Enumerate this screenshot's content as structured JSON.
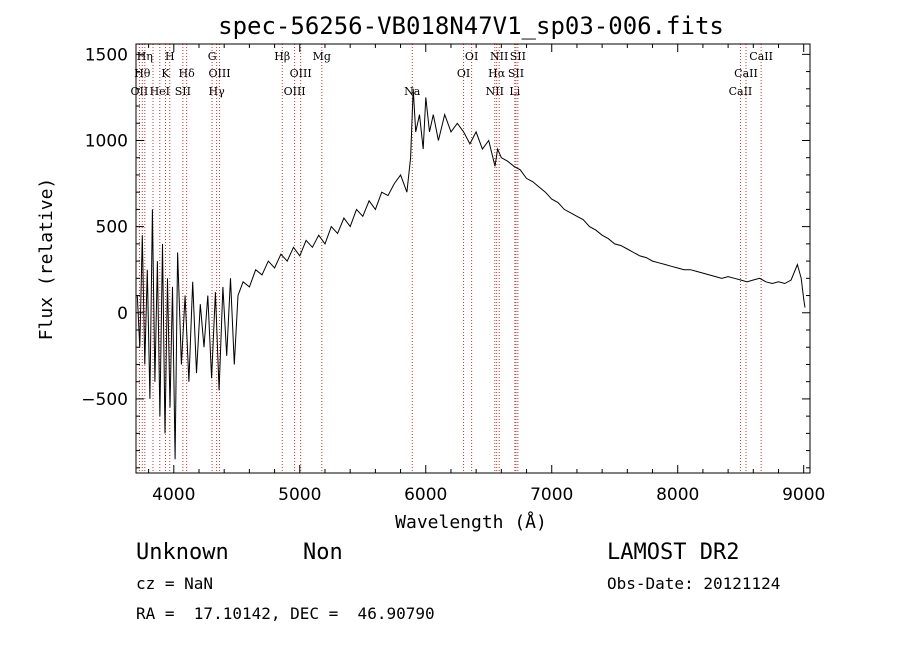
{
  "chart_data": {
    "type": "line",
    "title": "spec-56256-VB018N47V1_sp03-006.fits",
    "xlabel": "Wavelength (Å)",
    "ylabel": "Flux (relative)",
    "xlim": [
      3700,
      9050
    ],
    "ylim": [
      -930,
      1560
    ],
    "xticks": [
      4000,
      5000,
      6000,
      7000,
      8000,
      9000
    ],
    "yticks": [
      -500,
      0,
      500,
      1000,
      1500
    ],
    "grid": false,
    "line_color": "#000000",
    "marker_color": "#cc3333",
    "series": [
      {
        "x": [
          3710,
          3730,
          3750,
          3770,
          3790,
          3810,
          3830,
          3850,
          3870,
          3890,
          3910,
          3930,
          3950,
          3970,
          3990,
          4010,
          4030,
          4060,
          4090,
          4120,
          4150,
          4180,
          4210,
          4240,
          4270,
          4300,
          4330,
          4360,
          4390,
          4420,
          4450,
          4480,
          4510,
          4550,
          4600,
          4650,
          4700,
          4750,
          4800,
          4850,
          4900,
          4950,
          5000,
          5050,
          5100,
          5150,
          5200,
          5250,
          5300,
          5350,
          5400,
          5450,
          5500,
          5550,
          5600,
          5650,
          5700,
          5750,
          5800,
          5850,
          5880,
          5900,
          5920,
          5950,
          5980,
          6000,
          6030,
          6060,
          6100,
          6150,
          6200,
          6250,
          6300,
          6350,
          6400,
          6450,
          6500,
          6550,
          6570,
          6600,
          6650,
          6700,
          6750,
          6800,
          6850,
          6900,
          6950,
          7000,
          7050,
          7100,
          7150,
          7200,
          7250,
          7300,
          7350,
          7400,
          7450,
          7500,
          7550,
          7600,
          7650,
          7700,
          7750,
          7800,
          7850,
          7900,
          7950,
          8000,
          8050,
          8100,
          8150,
          8200,
          8250,
          8300,
          8350,
          8400,
          8450,
          8500,
          8550,
          8600,
          8650,
          8700,
          8750,
          8800,
          8850,
          8900,
          8950,
          8980,
          9000,
          9010
        ],
        "y": [
          100,
          -200,
          450,
          -300,
          250,
          -500,
          600,
          -400,
          300,
          -600,
          400,
          -700,
          200,
          -550,
          150,
          -850,
          350,
          -300,
          100,
          -400,
          180,
          -350,
          50,
          -200,
          100,
          -380,
          120,
          -450,
          150,
          -250,
          200,
          -300,
          100,
          180,
          150,
          250,
          220,
          300,
          260,
          340,
          300,
          380,
          330,
          420,
          380,
          450,
          400,
          500,
          460,
          550,
          500,
          600,
          560,
          650,
          600,
          700,
          680,
          750,
          800,
          700,
          900,
          1300,
          1050,
          1150,
          950,
          1250,
          1050,
          1150,
          1000,
          1150,
          1050,
          1100,
          1050,
          980,
          1050,
          950,
          1000,
          850,
          950,
          900,
          880,
          850,
          830,
          780,
          760,
          730,
          700,
          660,
          640,
          600,
          580,
          560,
          540,
          500,
          480,
          450,
          430,
          400,
          390,
          370,
          350,
          330,
          320,
          300,
          290,
          280,
          270,
          260,
          250,
          250,
          240,
          230,
          220,
          210,
          200,
          210,
          200,
          190,
          180,
          190,
          200,
          180,
          170,
          180,
          170,
          190,
          280,
          200,
          80,
          30
        ]
      }
    ],
    "line_markers": [
      {
        "wl": 3727,
        "label": "OII",
        "row": 3
      },
      {
        "wl": 3750,
        "label": "Hθ",
        "row": 2
      },
      {
        "wl": 3770,
        "label": "Hη",
        "row": 1
      },
      {
        "wl": 3835,
        "label": "",
        "row": 0
      },
      {
        "wl": 3889,
        "label": "HeI",
        "row": 3
      },
      {
        "wl": 3934,
        "label": "K",
        "row": 2
      },
      {
        "wl": 3968,
        "label": "H",
        "row": 1
      },
      {
        "wl": 4072,
        "label": "SII",
        "row": 3
      },
      {
        "wl": 4102,
        "label": "Hδ",
        "row": 2
      },
      {
        "wl": 4304,
        "label": "G",
        "row": 1
      },
      {
        "wl": 4340,
        "label": "Hγ",
        "row": 3
      },
      {
        "wl": 4363,
        "label": "OIII",
        "row": 2
      },
      {
        "wl": 4861,
        "label": "Hβ",
        "row": 1
      },
      {
        "wl": 4959,
        "label": "OIII",
        "row": 3
      },
      {
        "wl": 5007,
        "label": "OIII",
        "row": 2
      },
      {
        "wl": 5175,
        "label": "Mg",
        "row": 1
      },
      {
        "wl": 5893,
        "label": "Na",
        "row": 3
      },
      {
        "wl": 6300,
        "label": "OI",
        "row": 2
      },
      {
        "wl": 6364,
        "label": "OI",
        "row": 1
      },
      {
        "wl": 6548,
        "label": "NII",
        "row": 3
      },
      {
        "wl": 6563,
        "label": "Hα",
        "row": 2
      },
      {
        "wl": 6583,
        "label": "NII",
        "row": 1
      },
      {
        "wl": 6716,
        "label": "SII",
        "row": 2
      },
      {
        "wl": 6707,
        "label": "Li",
        "row": 3
      },
      {
        "wl": 6731,
        "label": "SII",
        "row": 1
      },
      {
        "wl": 8498,
        "label": "CaII",
        "row": 3
      },
      {
        "wl": 8542,
        "label": "CaII",
        "row": 2
      },
      {
        "wl": 8662,
        "label": "CaII",
        "row": 1
      }
    ]
  },
  "info": {
    "class": "Unknown",
    "subclass": "Non",
    "survey": "LAMOST DR2",
    "cz": "cz = NaN",
    "obs_date": "Obs-Date: 20121124",
    "coords": "RA =  17.10142, DEC =  46.90790"
  }
}
